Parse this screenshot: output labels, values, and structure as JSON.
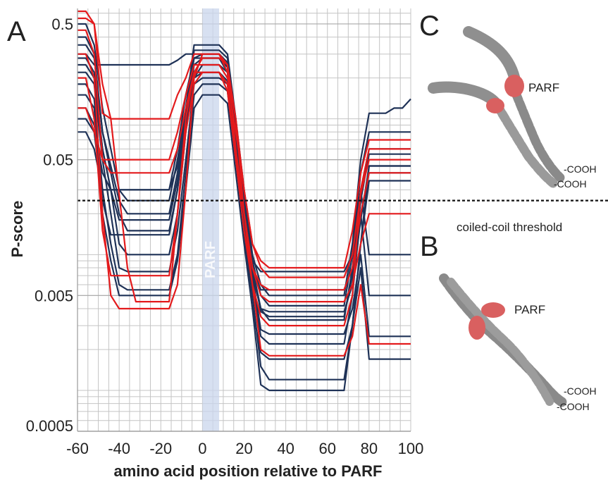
{
  "panels": {
    "a": "A",
    "b": "B",
    "c": "C"
  },
  "annotations": {
    "parf_band": "PARF",
    "threshold": "coiled-coil threshold",
    "parf_c": "PARF",
    "parf_b": "PARF",
    "cooh": "-COOH"
  },
  "colors": {
    "red": "#e31a1c",
    "navy": "#1f3257",
    "band": "#c9d5ec",
    "grid": "#c4c4c4"
  },
  "chart_data": {
    "type": "line",
    "title": "",
    "xlabel": "amino acid position relative to PARF",
    "ylabel": "P-score",
    "xlim": [
      -60,
      100
    ],
    "ylim": [
      0.0005,
      0.65
    ],
    "yscale": "log",
    "grid": true,
    "x_ticks": [
      -60,
      -40,
      -20,
      0,
      20,
      40,
      60,
      80,
      100
    ],
    "x_tick_labels": [
      "-60",
      "-40",
      "-20",
      "0",
      "20",
      "40",
      "60",
      "80",
      "100"
    ],
    "y_ticks": [
      0.0005,
      0.005,
      0.05,
      0.5
    ],
    "y_tick_labels": [
      "0.0005",
      "0.005",
      "0.05",
      "0.5"
    ],
    "parf_region": [
      0,
      8
    ],
    "threshold": 0.025,
    "series": [
      {
        "color": "red",
        "values": [
          0.62,
          0.62,
          0.5,
          0.18,
          0.1,
          0.028,
          0.008,
          0.0045,
          0.0045,
          0.0045,
          0.0045,
          0.0045,
          0.02,
          0.1,
          0.22,
          0.28,
          0.28,
          0.28,
          0.25,
          0.1,
          0.03,
          0.012,
          0.008,
          0.0068,
          0.0068,
          0.0068,
          0.0068,
          0.0068,
          0.0068,
          0.0068,
          0.0068,
          0.0068,
          0.0068,
          0.01,
          0.028,
          0.05,
          0.05,
          0.05,
          0.05,
          0.05,
          0.05
        ]
      },
      {
        "color": "red",
        "values": [
          0.55,
          0.55,
          0.5,
          0.11,
          0.1,
          0.1,
          0.1,
          0.1,
          0.1,
          0.1,
          0.1,
          0.1,
          0.15,
          0.2,
          0.3,
          0.3,
          0.3,
          0.3,
          0.22,
          0.1,
          0.02,
          0.008,
          0.005,
          0.0045,
          0.0045,
          0.0045,
          0.0045,
          0.0045,
          0.0045,
          0.0045,
          0.0045,
          0.0045,
          0.0045,
          0.006,
          0.012,
          0.02,
          0.02,
          0.02,
          0.02,
          0.02,
          0.02
        ]
      },
      {
        "color": "red",
        "values": [
          0.12,
          0.12,
          0.08,
          0.05,
          0.05,
          0.05,
          0.05,
          0.05,
          0.05,
          0.05,
          0.05,
          0.05,
          0.08,
          0.15,
          0.25,
          0.25,
          0.25,
          0.25,
          0.2,
          0.08,
          0.03,
          0.012,
          0.009,
          0.008,
          0.008,
          0.008,
          0.008,
          0.008,
          0.008,
          0.008,
          0.008,
          0.008,
          0.008,
          0.015,
          0.04,
          0.07,
          0.07,
          0.07,
          0.07,
          0.07,
          0.07
        ]
      },
      {
        "color": "red",
        "values": [
          0.3,
          0.3,
          0.2,
          0.02,
          0.005,
          0.004,
          0.004,
          0.004,
          0.004,
          0.004,
          0.004,
          0.004,
          0.006,
          0.03,
          0.2,
          0.3,
          0.3,
          0.3,
          0.25,
          0.06,
          0.02,
          0.006,
          0.0035,
          0.003,
          0.003,
          0.003,
          0.003,
          0.003,
          0.003,
          0.003,
          0.003,
          0.003,
          0.003,
          0.005,
          0.03,
          0.06,
          0.06,
          0.06,
          0.06,
          0.06,
          0.06
        ]
      },
      {
        "color": "red",
        "values": [
          0.45,
          0.45,
          0.3,
          0.05,
          0.04,
          0.04,
          0.04,
          0.04,
          0.04,
          0.04,
          0.04,
          0.04,
          0.06,
          0.12,
          0.22,
          0.22,
          0.22,
          0.22,
          0.16,
          0.05,
          0.015,
          0.006,
          0.002,
          0.0018,
          0.0018,
          0.0018,
          0.0018,
          0.0018,
          0.0018,
          0.0018,
          0.0018,
          0.0018,
          0.0018,
          0.0025,
          0.006,
          0.0022,
          0.0022,
          0.0022,
          0.0022,
          0.0022,
          0.0022
        ]
      },
      {
        "color": "red",
        "values": [
          0.2,
          0.2,
          0.1,
          0.015,
          0.007,
          0.007,
          0.007,
          0.007,
          0.007,
          0.007,
          0.007,
          0.007,
          0.02,
          0.08,
          0.18,
          0.22,
          0.22,
          0.22,
          0.18,
          0.05,
          0.02,
          0.008,
          0.006,
          0.0055,
          0.0055,
          0.0055,
          0.0055,
          0.0055,
          0.0055,
          0.0055,
          0.0055,
          0.0055,
          0.0055,
          0.008,
          0.02,
          0.04,
          0.04,
          0.04,
          0.04,
          0.04,
          0.04
        ]
      },
      {
        "color": "navy",
        "values": [
          0.5,
          0.5,
          0.35,
          0.12,
          0.06,
          0.03,
          0.025,
          0.025,
          0.025,
          0.025,
          0.025,
          0.025,
          0.05,
          0.12,
          0.35,
          0.35,
          0.35,
          0.35,
          0.3,
          0.1,
          0.03,
          0.01,
          0.006,
          0.005,
          0.005,
          0.005,
          0.005,
          0.005,
          0.005,
          0.005,
          0.005,
          0.005,
          0.005,
          0.012,
          0.05,
          0.11,
          0.11,
          0.11,
          0.12,
          0.12,
          0.14
        ]
      },
      {
        "color": "navy",
        "values": [
          0.4,
          0.4,
          0.3,
          0.08,
          0.04,
          0.02,
          0.015,
          0.015,
          0.015,
          0.015,
          0.015,
          0.015,
          0.03,
          0.1,
          0.32,
          0.32,
          0.32,
          0.32,
          0.28,
          0.09,
          0.025,
          0.009,
          0.005,
          0.0042,
          0.0042,
          0.0042,
          0.0042,
          0.0042,
          0.0042,
          0.0042,
          0.0042,
          0.0042,
          0.0042,
          0.01,
          0.04,
          0.08,
          0.08,
          0.08,
          0.08,
          0.08,
          0.08
        ]
      },
      {
        "color": "navy",
        "values": [
          0.3,
          0.3,
          0.25,
          0.25,
          0.25,
          0.25,
          0.25,
          0.25,
          0.25,
          0.25,
          0.25,
          0.25,
          0.27,
          0.3,
          0.3,
          0.3,
          0.3,
          0.3,
          0.25,
          0.08,
          0.02,
          0.007,
          0.004,
          0.0033,
          0.0033,
          0.0033,
          0.0033,
          0.0033,
          0.0033,
          0.0033,
          0.0033,
          0.0033,
          0.0033,
          0.008,
          0.03,
          0.06,
          0.06,
          0.06,
          0.06,
          0.06,
          0.06
        ]
      },
      {
        "color": "navy",
        "values": [
          0.25,
          0.25,
          0.2,
          0.06,
          0.03,
          0.012,
          0.01,
          0.01,
          0.01,
          0.01,
          0.01,
          0.01,
          0.02,
          0.08,
          0.2,
          0.25,
          0.25,
          0.25,
          0.22,
          0.07,
          0.02,
          0.006,
          0.0025,
          0.0022,
          0.0022,
          0.0022,
          0.0022,
          0.0022,
          0.0022,
          0.0022,
          0.0022,
          0.0022,
          0.0022,
          0.005,
          0.02,
          0.04,
          0.04,
          0.04,
          0.04,
          0.04,
          0.04
        ]
      },
      {
        "color": "navy",
        "values": [
          0.22,
          0.22,
          0.18,
          0.05,
          0.02,
          0.008,
          0.0075,
          0.0075,
          0.0075,
          0.0075,
          0.0075,
          0.0075,
          0.015,
          0.05,
          0.18,
          0.2,
          0.2,
          0.2,
          0.18,
          0.06,
          0.018,
          0.005,
          0.0015,
          0.0012,
          0.0012,
          0.0012,
          0.0012,
          0.0012,
          0.0012,
          0.0012,
          0.0012,
          0.0012,
          0.0012,
          0.003,
          0.012,
          0.045,
          0.045,
          0.045,
          0.045,
          0.045,
          0.045
        ]
      },
      {
        "color": "navy",
        "values": [
          0.18,
          0.18,
          0.14,
          0.03,
          0.012,
          0.006,
          0.0055,
          0.0055,
          0.0055,
          0.0055,
          0.0055,
          0.0055,
          0.01,
          0.04,
          0.15,
          0.18,
          0.18,
          0.18,
          0.16,
          0.05,
          0.015,
          0.004,
          0.0011,
          0.001,
          0.001,
          0.001,
          0.001,
          0.001,
          0.001,
          0.001,
          0.001,
          0.001,
          0.001,
          0.003,
          0.012,
          0.035,
          0.035,
          0.035,
          0.035,
          0.035,
          0.035
        ]
      },
      {
        "color": "navy",
        "values": [
          0.15,
          0.15,
          0.12,
          0.02,
          0.009,
          0.005,
          0.005,
          0.005,
          0.005,
          0.005,
          0.005,
          0.005,
          0.009,
          0.03,
          0.12,
          0.15,
          0.15,
          0.15,
          0.13,
          0.04,
          0.012,
          0.004,
          0.0019,
          0.0017,
          0.0017,
          0.0017,
          0.0017,
          0.0017,
          0.0017,
          0.0017,
          0.0017,
          0.0017,
          0.0017,
          0.003,
          0.008,
          0.0017,
          0.0017,
          0.0017,
          0.0017,
          0.0017,
          0.0017
        ]
      },
      {
        "color": "navy",
        "values": [
          0.1,
          0.1,
          0.08,
          0.025,
          0.014,
          0.014,
          0.014,
          0.014,
          0.014,
          0.014,
          0.014,
          0.014,
          0.03,
          0.09,
          0.22,
          0.22,
          0.22,
          0.22,
          0.18,
          0.06,
          0.02,
          0.007,
          0.0028,
          0.0026,
          0.0026,
          0.0026,
          0.0026,
          0.0026,
          0.0026,
          0.0026,
          0.0026,
          0.0026,
          0.0026,
          0.004,
          0.01,
          0.0025,
          0.0025,
          0.0025,
          0.0025,
          0.0025,
          0.0025
        ]
      },
      {
        "color": "navy",
        "values": [
          0.08,
          0.08,
          0.06,
          0.03,
          0.03,
          0.03,
          0.03,
          0.03,
          0.03,
          0.03,
          0.03,
          0.03,
          0.06,
          0.15,
          0.28,
          0.28,
          0.28,
          0.28,
          0.22,
          0.07,
          0.022,
          0.008,
          0.0055,
          0.0055,
          0.0055,
          0.0055,
          0.0055,
          0.0055,
          0.0055,
          0.0055,
          0.0055,
          0.0055,
          0.0055,
          0.008,
          0.02,
          0.005,
          0.005,
          0.005,
          0.005,
          0.005,
          0.005
        ]
      },
      {
        "color": "navy",
        "values": [
          0.35,
          0.35,
          0.28,
          0.08,
          0.045,
          0.025,
          0.02,
          0.02,
          0.02,
          0.02,
          0.02,
          0.02,
          0.04,
          0.11,
          0.28,
          0.3,
          0.3,
          0.3,
          0.26,
          0.08,
          0.025,
          0.009,
          0.0075,
          0.0075,
          0.0075,
          0.0075,
          0.0075,
          0.0075,
          0.0075,
          0.0075,
          0.0075,
          0.0075,
          0.0075,
          0.01,
          0.03,
          0.01,
          0.01,
          0.01,
          0.01,
          0.01,
          0.01
        ]
      },
      {
        "color": "navy",
        "values": [
          0.28,
          0.28,
          0.22,
          0.06,
          0.03,
          0.018,
          0.018,
          0.018,
          0.018,
          0.018,
          0.018,
          0.018,
          0.035,
          0.09,
          0.25,
          0.28,
          0.28,
          0.28,
          0.24,
          0.07,
          0.022,
          0.008,
          0.0038,
          0.0035,
          0.0035,
          0.0035,
          0.0035,
          0.0035,
          0.0035,
          0.0035,
          0.0035,
          0.0035,
          0.0035,
          0.007,
          0.025,
          0.055,
          0.055,
          0.055,
          0.055,
          0.055,
          0.055
        ]
      },
      {
        "color": "navy",
        "values": [
          0.12,
          0.12,
          0.09,
          0.04,
          0.03,
          0.03,
          0.03,
          0.03,
          0.03,
          0.03,
          0.03,
          0.03,
          0.045,
          0.1,
          0.2,
          0.22,
          0.22,
          0.22,
          0.19,
          0.06,
          0.02,
          0.008,
          0.004,
          0.0038,
          0.0038,
          0.0038,
          0.0038,
          0.0038,
          0.0038,
          0.0038,
          0.0038,
          0.0038,
          0.0038,
          0.006,
          0.018,
          0.045,
          0.045,
          0.045,
          0.045,
          0.045,
          0.045
        ]
      }
    ]
  }
}
